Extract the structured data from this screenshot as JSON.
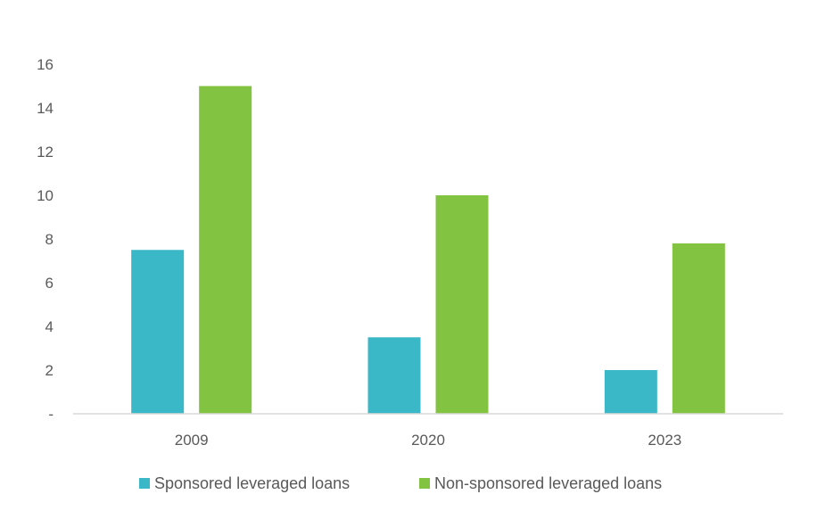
{
  "chart_data": {
    "type": "bar",
    "title": "",
    "xlabel": "",
    "ylabel": "",
    "categories": [
      "2009",
      "2020",
      "2023"
    ],
    "series": [
      {
        "name": "Sponsored leveraged loans",
        "color": "#3BB8C8",
        "values": [
          7.5,
          3.5,
          2.0
        ]
      },
      {
        "name": "Non-sponsored leveraged loans",
        "color": "#82C341",
        "values": [
          15.0,
          10.0,
          7.8
        ]
      }
    ],
    "ylim": [
      0,
      16
    ],
    "yticks": [
      0,
      2,
      4,
      6,
      8,
      10,
      12,
      14,
      16
    ],
    "ytick_labels": [
      "-",
      "2",
      "4",
      "6",
      "8",
      "10",
      "12",
      "14",
      "16"
    ],
    "grid": false,
    "legend_position": "bottom"
  }
}
